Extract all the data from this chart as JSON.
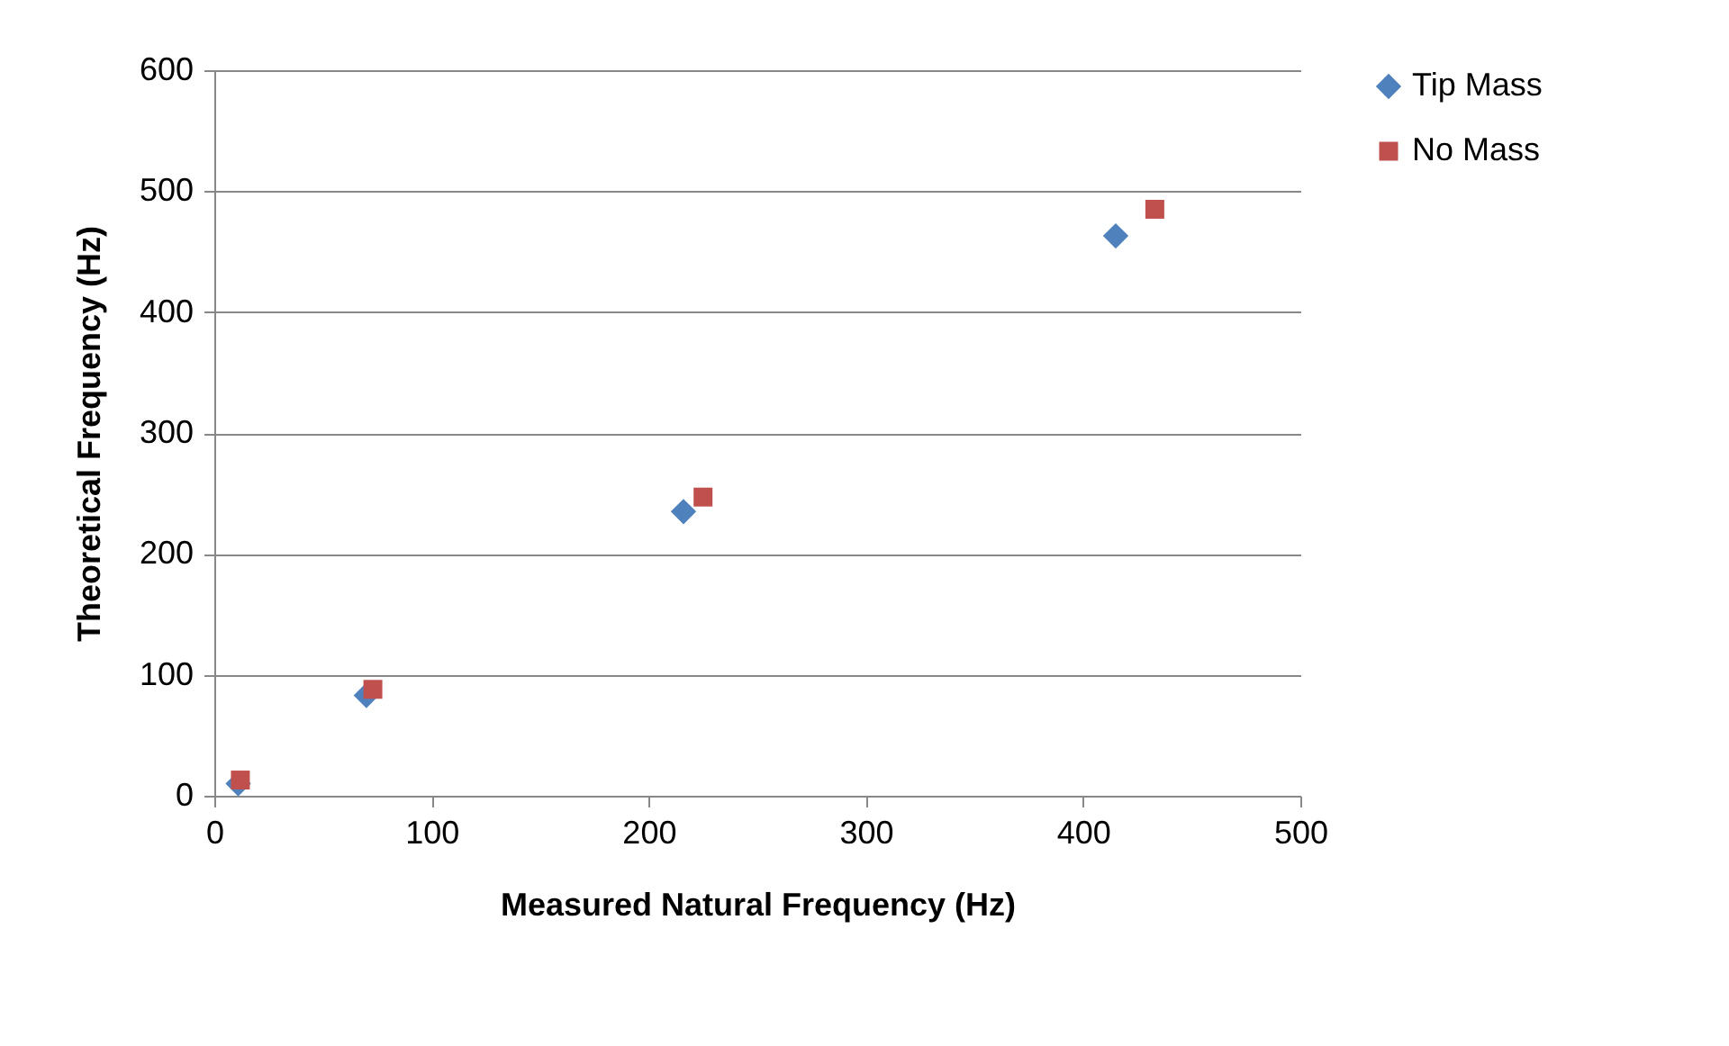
{
  "chart_data": {
    "type": "scatter",
    "xlabel": "Measured Natural Frequency (Hz)",
    "ylabel": "Theoretical Frequency (Hz)",
    "xlim": [
      0,
      500
    ],
    "xticks": [
      0,
      100,
      200,
      300,
      400,
      500
    ],
    "ylim": [
      0,
      600
    ],
    "yticks": [
      0,
      100,
      200,
      300,
      400,
      500,
      600
    ],
    "grid": "y",
    "legend": "right",
    "series": [
      {
        "name": "Tip Mass",
        "color": "#4f81bd",
        "marker": "diamond",
        "x": [
          11,
          70,
          216,
          415
        ],
        "values": [
          10,
          83,
          235,
          463
        ]
      },
      {
        "name": "No Mass",
        "color": "#c0504d",
        "marker": "square",
        "x": [
          12,
          73,
          225,
          433
        ],
        "values": [
          13,
          88,
          247,
          485
        ]
      }
    ]
  }
}
